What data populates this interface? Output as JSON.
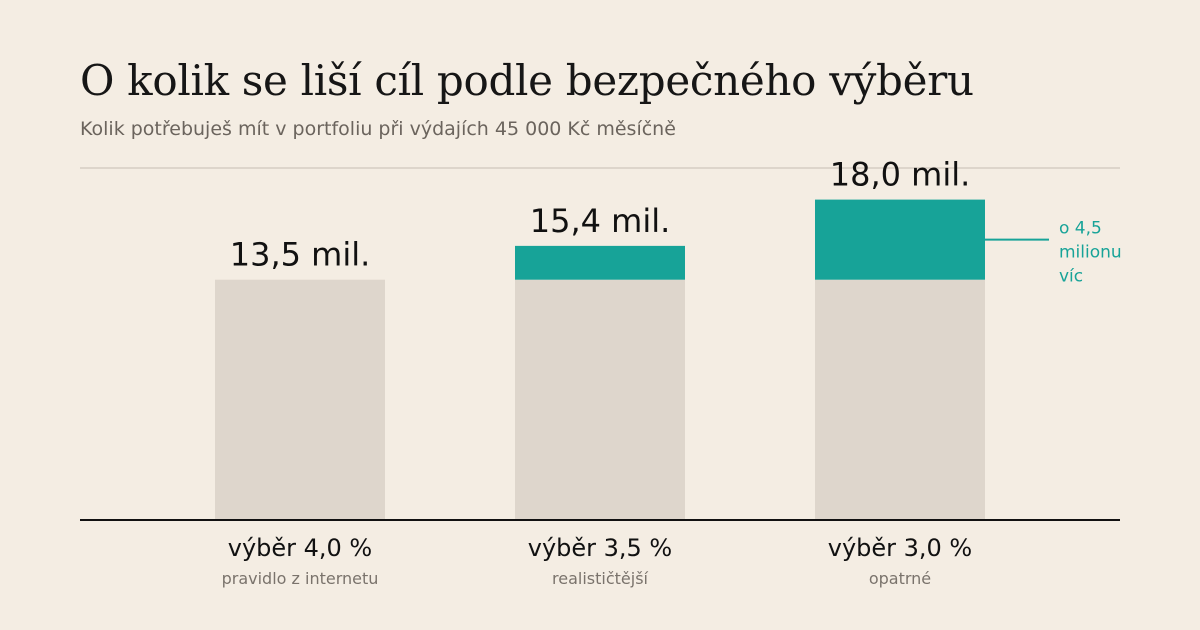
{
  "title": "O kolik se liší cíl podle bezpečného výběru",
  "subtitle": "Kolik potřebuješ mít v portfoliu při výdajích 45 000 Kč měsíčně",
  "colors": {
    "base": "#ded6cc",
    "increment": "#17a398",
    "background": "#f4ede3",
    "axis": "#111111",
    "gridline": "#ddd5cb"
  },
  "chart_data": {
    "type": "bar",
    "stacked": true,
    "unit": "mil.",
    "ylim": [
      0,
      19
    ],
    "baseline_value": 13.5,
    "categories": [
      "výběr 4,0 %",
      "výběr 3,5 %",
      "výběr 3,0 %"
    ],
    "category_notes": [
      "pravidlo z internetu",
      "realističtější",
      "opatrné"
    ],
    "values": [
      13.5,
      15.4,
      18.0
    ],
    "value_labels": [
      "13,5 mil.",
      "15,4 mil.",
      "18,0 mil."
    ],
    "annotation": {
      "category_index": 2,
      "lines": [
        "o 4,5",
        "milionu",
        "víc"
      ]
    },
    "grid": false,
    "legend": "none"
  }
}
